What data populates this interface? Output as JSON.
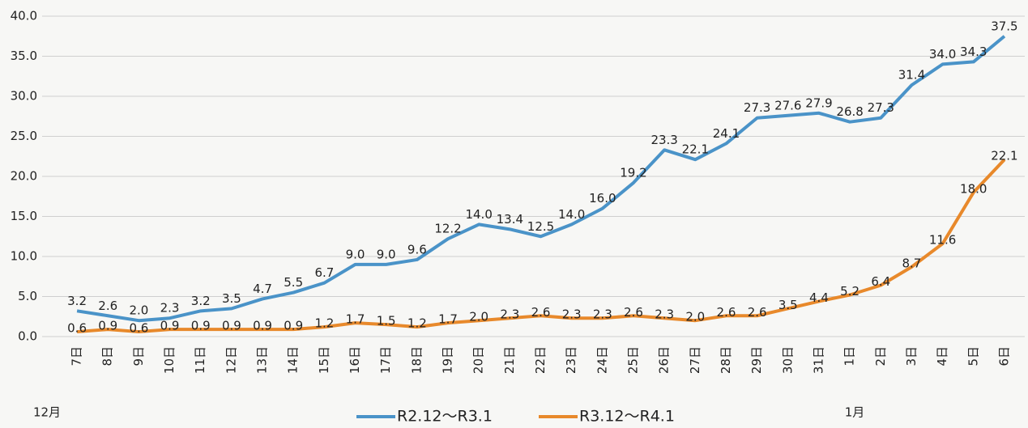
{
  "chart_data": {
    "type": "line",
    "categories": [
      "7日",
      "8日",
      "9日",
      "10日",
      "11日",
      "12日",
      "13日",
      "14日",
      "15日",
      "16日",
      "17日",
      "18日",
      "19日",
      "20日",
      "21日",
      "22日",
      "23日",
      "24日",
      "25日",
      "26日",
      "27日",
      "28日",
      "29日",
      "30日",
      "31日",
      "1日",
      "2日",
      "3日",
      "4日",
      "5日",
      "6日"
    ],
    "series": [
      {
        "name": "R2.12～R3.1",
        "color": "#4a93c8",
        "values": [
          3.2,
          2.6,
          2.0,
          2.3,
          3.2,
          3.5,
          4.7,
          5.5,
          6.7,
          9.0,
          9.0,
          9.6,
          12.2,
          14.0,
          13.4,
          12.5,
          14.0,
          16.0,
          19.2,
          23.3,
          22.1,
          24.1,
          27.3,
          27.6,
          27.9,
          26.8,
          27.3,
          31.4,
          34.0,
          34.3,
          37.5
        ],
        "value_labels": [
          "3.2",
          "2.6",
          "2.0",
          "2.3",
          "3.2",
          "3.5",
          "4.7",
          "5.5",
          "6.7",
          "9.0",
          "9.0",
          "9.6",
          "12.2",
          "14.0",
          "13.4",
          "12.5",
          "14.0",
          "16.0",
          "19.2",
          "23.3",
          "22.1",
          "24.1",
          "27.3",
          "27.6",
          "27.9",
          "26.8",
          "27.3",
          "31.4",
          "34.0",
          "34.3",
          "37.5"
        ]
      },
      {
        "name": "R3.12～R4.1",
        "color": "#e8892b",
        "values": [
          0.6,
          0.9,
          0.6,
          0.9,
          0.9,
          0.9,
          0.9,
          0.9,
          1.2,
          1.7,
          1.5,
          1.2,
          1.7,
          2.0,
          2.3,
          2.6,
          2.3,
          2.3,
          2.6,
          2.3,
          2.0,
          2.6,
          2.6,
          3.5,
          4.4,
          5.2,
          6.4,
          8.7,
          11.6,
          18.0,
          22.1
        ],
        "value_labels": [
          "0.6",
          "0.9",
          "0.6",
          "0.9",
          "0.9",
          "0.9",
          "0.9",
          "0.9",
          "1.2",
          "1.7",
          "1.5",
          "1.2",
          "1.7",
          "2.0",
          "2.3",
          "2.6",
          "2.3",
          "2.3",
          "2.6",
          "2.3",
          "2.0",
          "2.6",
          "2.6",
          "3.5",
          "4.4",
          "5.2",
          "6.4",
          "8.7",
          "11.6",
          "18.0",
          "22.1"
        ]
      }
    ],
    "ylim": [
      0,
      40
    ],
    "yticks": [
      {
        "value": 0,
        "label": "0.0"
      },
      {
        "value": 5,
        "label": "5.0"
      },
      {
        "value": 10,
        "label": "10.0"
      },
      {
        "value": 15,
        "label": "15.0"
      },
      {
        "value": 20,
        "label": "20.0"
      },
      {
        "value": 25,
        "label": "25.0"
      },
      {
        "value": 30,
        "label": "30.0"
      },
      {
        "value": 35,
        "label": "35.0"
      },
      {
        "value": 40,
        "label": "40.0"
      }
    ],
    "grid": true,
    "annotations": [
      "12月",
      "1月"
    ]
  }
}
